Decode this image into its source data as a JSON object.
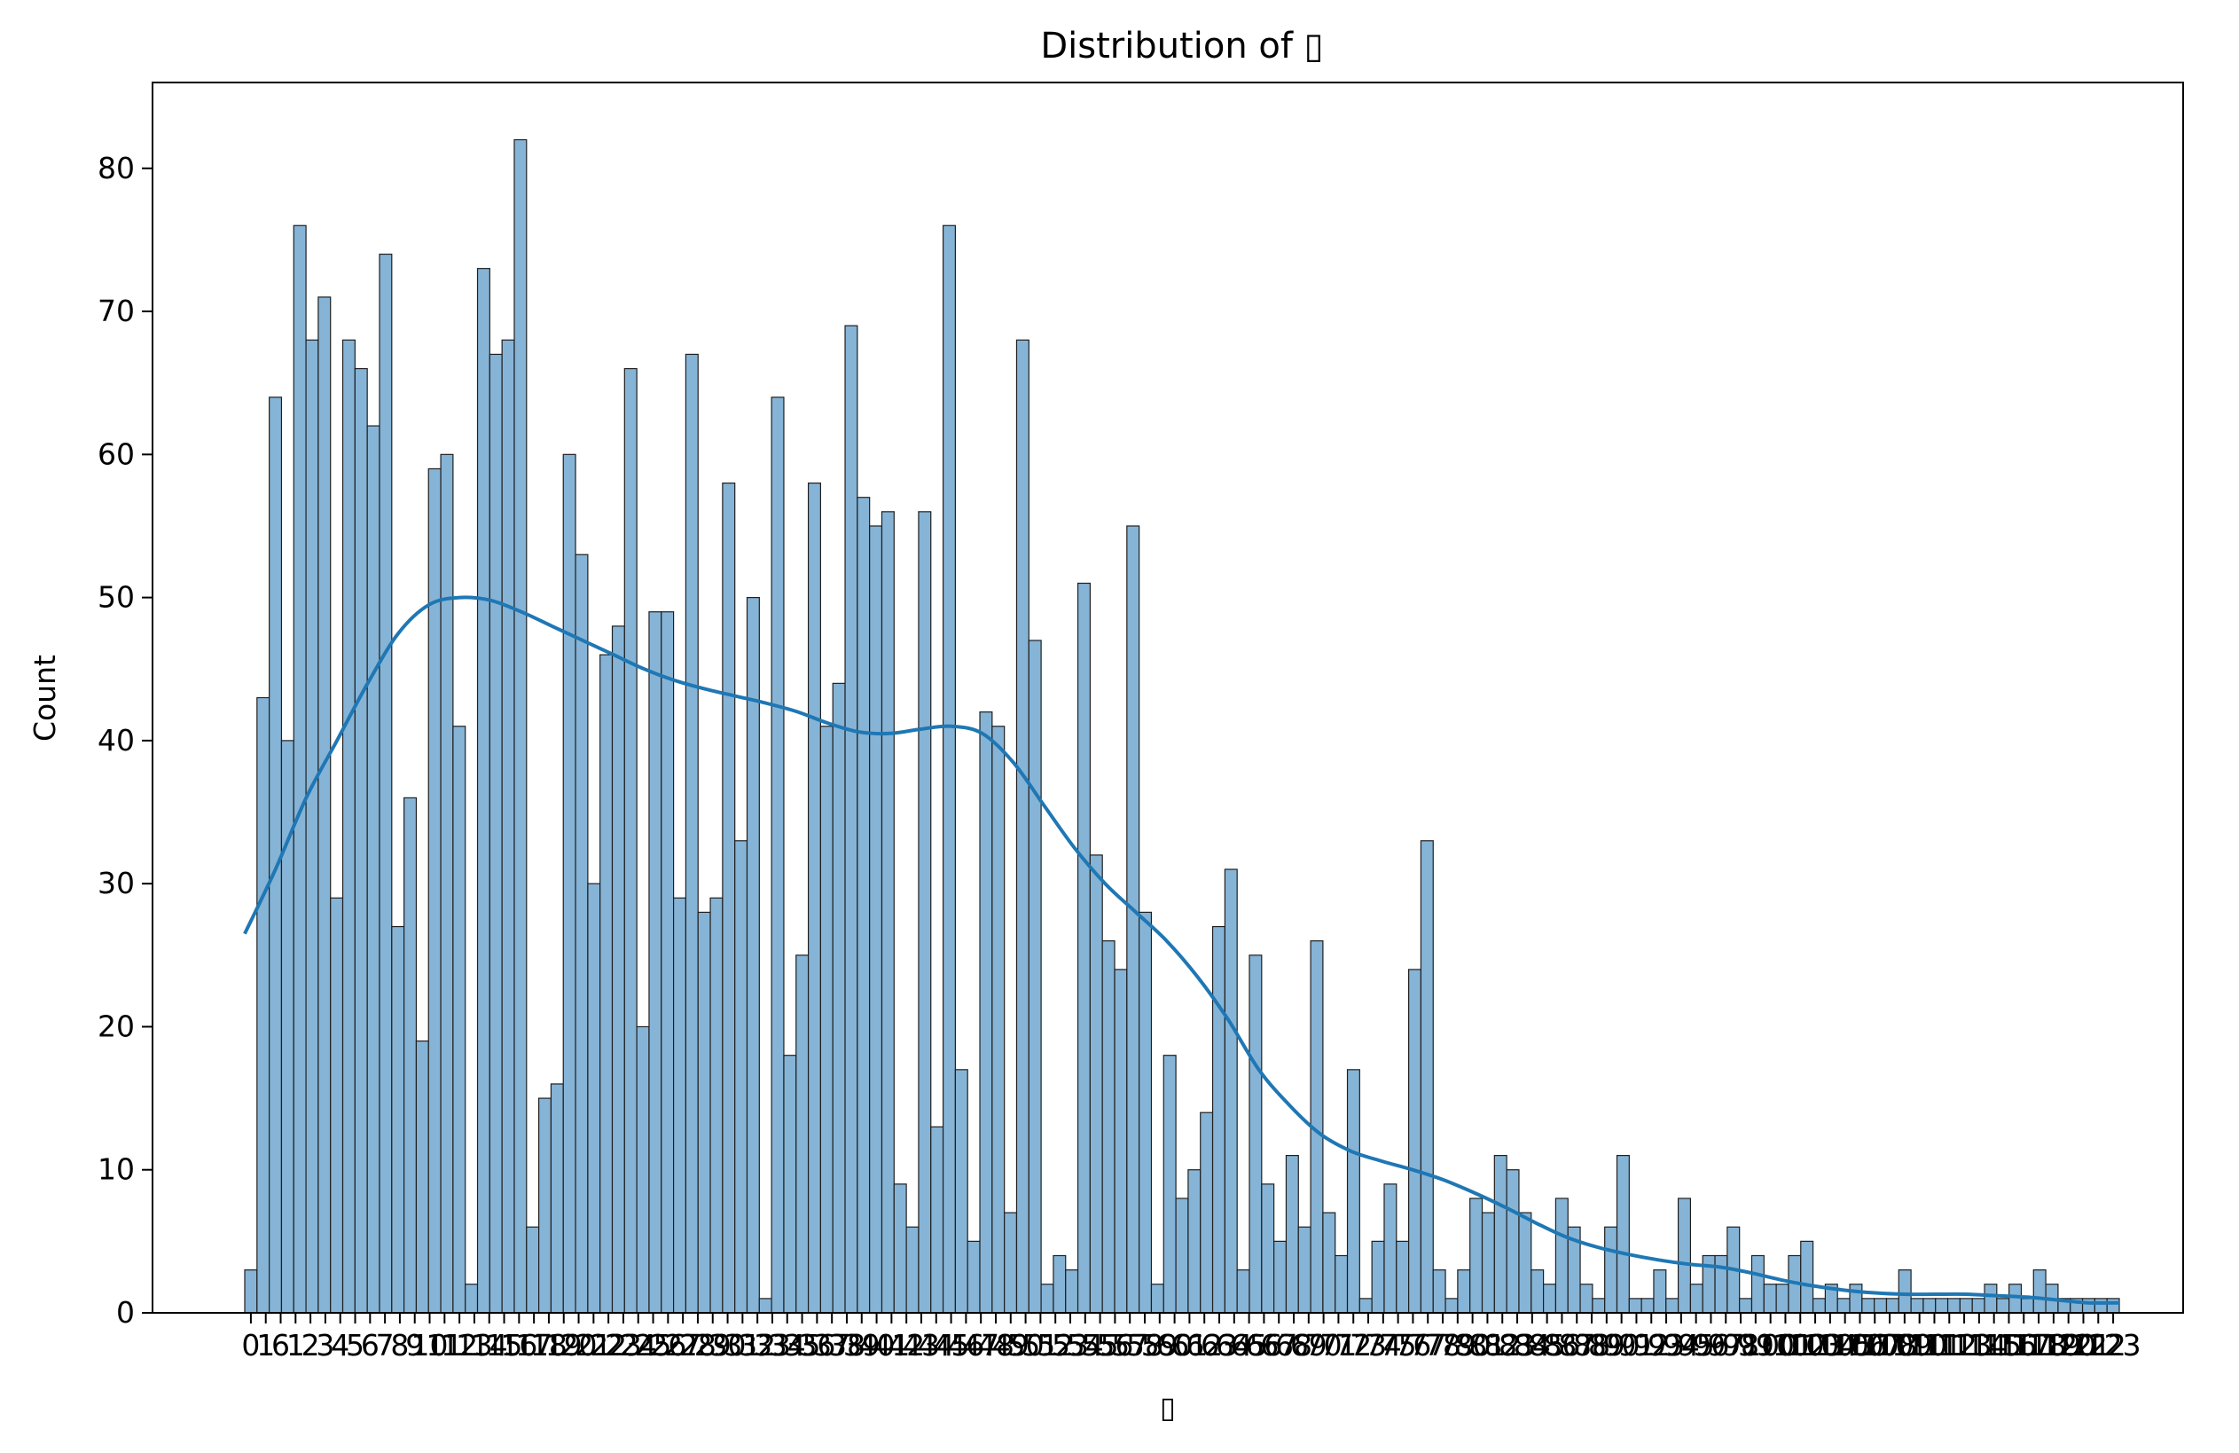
{
  "chart_data": {
    "type": "bar",
    "title": "Distribution of ▯",
    "xlabel": "▯",
    "ylabel": "Count",
    "ylim": [
      0,
      86
    ],
    "yticks": [
      0,
      10,
      20,
      30,
      40,
      50,
      60,
      70,
      80
    ],
    "grid": false,
    "legend": "none",
    "x_tick_labels_overlapping": [
      "0",
      "1",
      "6",
      "1",
      "2",
      "3",
      "4",
      "5",
      "6",
      "7",
      "8",
      "9",
      "10",
      "11",
      "12",
      "13",
      "14",
      "15",
      "16",
      "17",
      "18",
      "19",
      "20",
      "21",
      "22",
      "23",
      "24",
      "25",
      "26",
      "27",
      "28",
      "29",
      "30",
      "31",
      "32",
      "33",
      "34",
      "35",
      "36",
      "37",
      "38",
      "39",
      "40",
      "41",
      "42",
      "43",
      "44",
      "45",
      "46",
      "47",
      "48",
      "49",
      "50",
      "51",
      "52",
      "53",
      "54",
      "55",
      "56",
      "57",
      "58",
      "59",
      "60",
      "61",
      "62",
      "63",
      "64",
      "65",
      "66",
      "67",
      "68",
      "69",
      "70",
      "71",
      "72",
      "73",
      "74",
      "75",
      "76",
      "77",
      "78",
      "79",
      "80",
      "81",
      "82",
      "83",
      "84",
      "85",
      "86",
      "87",
      "88",
      "89",
      "90",
      "91",
      "92",
      "93",
      "94",
      "95",
      "96",
      "97",
      "98",
      "99",
      "100",
      "101",
      "102",
      "103",
      "104",
      "105",
      "106",
      "107",
      "108",
      "109",
      "110",
      "111",
      "112",
      "113",
      "114",
      "115",
      "116",
      "117",
      "118",
      "119",
      "120",
      "121",
      "122",
      "123"
    ],
    "values": [
      3,
      43,
      64,
      40,
      76,
      68,
      71,
      29,
      68,
      66,
      62,
      74,
      27,
      36,
      19,
      59,
      60,
      41,
      2,
      73,
      67,
      68,
      82,
      6,
      15,
      16,
      60,
      53,
      30,
      46,
      48,
      66,
      20,
      49,
      49,
      29,
      67,
      28,
      29,
      58,
      33,
      50,
      1,
      64,
      18,
      25,
      58,
      41,
      44,
      69,
      57,
      55,
      56,
      9,
      6,
      56,
      13,
      76,
      17,
      5,
      42,
      41,
      7,
      68,
      47,
      2,
      4,
      3,
      51,
      32,
      26,
      24,
      55,
      28,
      2,
      18,
      8,
      10,
      14,
      27,
      31,
      3,
      25,
      9,
      5,
      11,
      6,
      26,
      7,
      4,
      17,
      1,
      5,
      9,
      5,
      24,
      33,
      3,
      1,
      3,
      8,
      7,
      11,
      10,
      7,
      3,
      2,
      8,
      6,
      2,
      1,
      6,
      11,
      1,
      1,
      3,
      1,
      8,
      2,
      4,
      4,
      6,
      1,
      4,
      2,
      2,
      4,
      5,
      1,
      2,
      1,
      2,
      1,
      1,
      1,
      3,
      1,
      1,
      1,
      1,
      1,
      1,
      2,
      1,
      2,
      1,
      3,
      2,
      1,
      1,
      1,
      1,
      1
    ],
    "kde": [
      26.5,
      31,
      36,
      40,
      44,
      47.5,
      49.5,
      50,
      49.8,
      49,
      48,
      47,
      46,
      45,
      44.2,
      43.6,
      43.1,
      42.6,
      42,
      41.2,
      40.6,
      40.5,
      40.8,
      41,
      40.5,
      38.5,
      35.5,
      32.5,
      30,
      28,
      26,
      23.5,
      20.5,
      17,
      14.5,
      12.5,
      11.3,
      10.6,
      10,
      9.3,
      8.4,
      7.4,
      6.3,
      5.3,
      4.6,
      4.1,
      3.7,
      3.4,
      3.2,
      2.8,
      2.3,
      1.9,
      1.6,
      1.4,
      1.3,
      1.3,
      1.3,
      1.2,
      1.1,
      0.9,
      0.7,
      0.7
    ],
    "bar_color": "#86b4d6",
    "bar_edge_color": "#1f1f1f",
    "kde_color": "#1f77b4"
  }
}
